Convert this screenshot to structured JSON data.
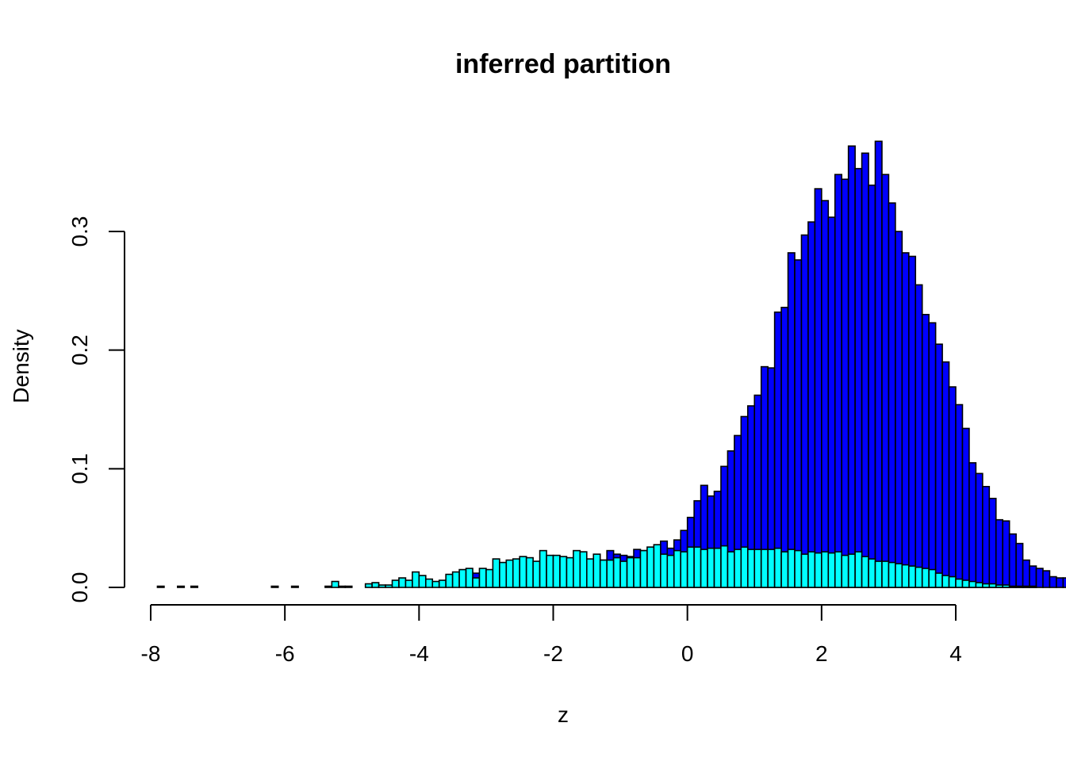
{
  "chart_data": {
    "type": "bar",
    "title": "inferred partition",
    "xlabel": "z",
    "ylabel": "Density",
    "xlim": [
      -8,
      4.2
    ],
    "ylim": [
      0,
      0.375
    ],
    "x_ticks": [
      -8,
      -6,
      -4,
      -2,
      0,
      2,
      4
    ],
    "y_ticks": [
      0.0,
      0.1,
      0.2,
      0.3
    ],
    "x_tick_labels": [
      "-8",
      "-6",
      "-4",
      "-2",
      "0",
      "2",
      "4"
    ],
    "y_tick_labels": [
      "0.0",
      "0.1",
      "0.2",
      "0.3"
    ],
    "bin_width": 0.1,
    "bin_start": -7.9,
    "series": [
      {
        "color": "#0000FF",
        "values": [
          0.001,
          0,
          0,
          0.001,
          0,
          0.001,
          0,
          0,
          0,
          0,
          0,
          0,
          0,
          0,
          0,
          0,
          0,
          0.001,
          0,
          0,
          0.001,
          0,
          0,
          0,
          0,
          0,
          0,
          0,
          0,
          0,
          0,
          0,
          0,
          0,
          0,
          0,
          0,
          0,
          0,
          0,
          0,
          0,
          0,
          0,
          0,
          0,
          0.013,
          0.012,
          0.005,
          0.008,
          0.008,
          0.006,
          0.011,
          0.009,
          0.01,
          0.012,
          0.012,
          0.014,
          0.01,
          0.01,
          0.015,
          0.014,
          0.015,
          0.021,
          0.021,
          0.022,
          0.023,
          0.031,
          0.028,
          0.027,
          0.026,
          0.032,
          0.031,
          0.03,
          0.031,
          0.039,
          0.033,
          0.04,
          0.048,
          0.059,
          0.073,
          0.086,
          0.077,
          0.081,
          0.102,
          0.115,
          0.128,
          0.144,
          0.153,
          0.162,
          0.186,
          0.185,
          0.232,
          0.236,
          0.282,
          0.276,
          0.297,
          0.308,
          0.336,
          0.326,
          0.312,
          0.348,
          0.344,
          0.372,
          0.353,
          0.366,
          0.339,
          0.376,
          0.348,
          0.324,
          0.3,
          0.282,
          0.279,
          0.255,
          0.23,
          0.223,
          0.205,
          0.19,
          0.169,
          0.154,
          0.134,
          0.105,
          0.096,
          0.085,
          0.075,
          0.057,
          0.056,
          0.045,
          0.037,
          0.023,
          0.018,
          0.016,
          0.014,
          0.009,
          0.008,
          0.008,
          0.009,
          0.002,
          0.002,
          0,
          0,
          0.002,
          0.004,
          0.002,
          0,
          0,
          0,
          0,
          0.001
        ],
        "label": ""
      },
      {
        "color": "#00FFFF",
        "values": [
          0,
          0,
          0,
          0,
          0,
          0,
          0,
          0,
          0,
          0,
          0,
          0,
          0,
          0,
          0,
          0,
          0,
          0,
          0,
          0,
          0,
          0,
          0,
          0,
          0,
          0.001,
          0.005,
          0.001,
          0.001,
          0,
          0,
          0.003,
          0.004,
          0.002,
          0.002,
          0.006,
          0.008,
          0.006,
          0.013,
          0.01,
          0.007,
          0.005,
          0.006,
          0.011,
          0.013,
          0.015,
          0.016,
          0.008,
          0.016,
          0.015,
          0.024,
          0.021,
          0.023,
          0.024,
          0.026,
          0.025,
          0.022,
          0.031,
          0.027,
          0.027,
          0.026,
          0.025,
          0.031,
          0.03,
          0.024,
          0.028,
          0.023,
          0.023,
          0.025,
          0.022,
          0.025,
          0.025,
          0.031,
          0.034,
          0.036,
          0.028,
          0.027,
          0.031,
          0.03,
          0.034,
          0.034,
          0.032,
          0.033,
          0.033,
          0.035,
          0.03,
          0.032,
          0.034,
          0.032,
          0.032,
          0.032,
          0.032,
          0.033,
          0.03,
          0.032,
          0.031,
          0.028,
          0.03,
          0.029,
          0.03,
          0.029,
          0.03,
          0.027,
          0.028,
          0.03,
          0.026,
          0.024,
          0.022,
          0.022,
          0.021,
          0.02,
          0.019,
          0.018,
          0.017,
          0.016,
          0.015,
          0.012,
          0.01,
          0.009,
          0.007,
          0.006,
          0.005,
          0.004,
          0.003,
          0.003,
          0.002,
          0.002,
          0.001,
          0.001,
          0.001,
          0.001,
          0,
          0,
          0,
          0,
          0,
          0,
          0,
          0,
          0,
          0,
          0,
          0,
          0,
          0,
          0,
          0
        ],
        "label": ""
      }
    ]
  }
}
